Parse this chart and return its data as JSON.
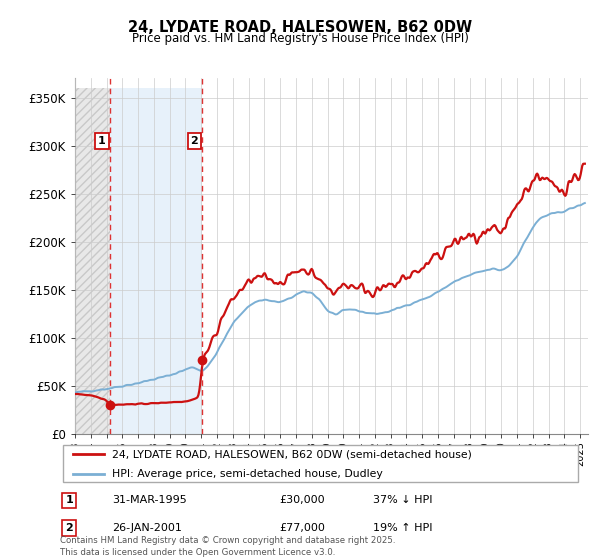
{
  "title": "24, LYDATE ROAD, HALESOWEN, B62 0DW",
  "subtitle": "Price paid vs. HM Land Registry's House Price Index (HPI)",
  "yticks": [
    0,
    50000,
    100000,
    150000,
    200000,
    250000,
    300000,
    350000
  ],
  "ytick_labels": [
    "£0",
    "£50K",
    "£100K",
    "£150K",
    "£200K",
    "£250K",
    "£300K",
    "£350K"
  ],
  "purchase_dates": [
    1995.21,
    2001.07
  ],
  "purchase_prices": [
    30000,
    77000
  ],
  "hpi_line_color": "#7bafd4",
  "price_line_color": "#cc1111",
  "dashed_line_color": "#dd3333",
  "legend_line1": "24, LYDATE ROAD, HALESOWEN, B62 0DW (semi-detached house)",
  "legend_line2": "HPI: Average price, semi-detached house, Dudley",
  "table_row1": [
    "1",
    "31-MAR-1995",
    "£30,000",
    "37% ↓ HPI"
  ],
  "table_row2": [
    "2",
    "26-JAN-2001",
    "£77,000",
    "19% ↑ HPI"
  ],
  "footnote": "Contains HM Land Registry data © Crown copyright and database right 2025.\nThis data is licensed under the Open Government Licence v3.0.",
  "xmin": 1993.0,
  "xmax": 2025.5,
  "ymin": 0,
  "ymax": 360000
}
